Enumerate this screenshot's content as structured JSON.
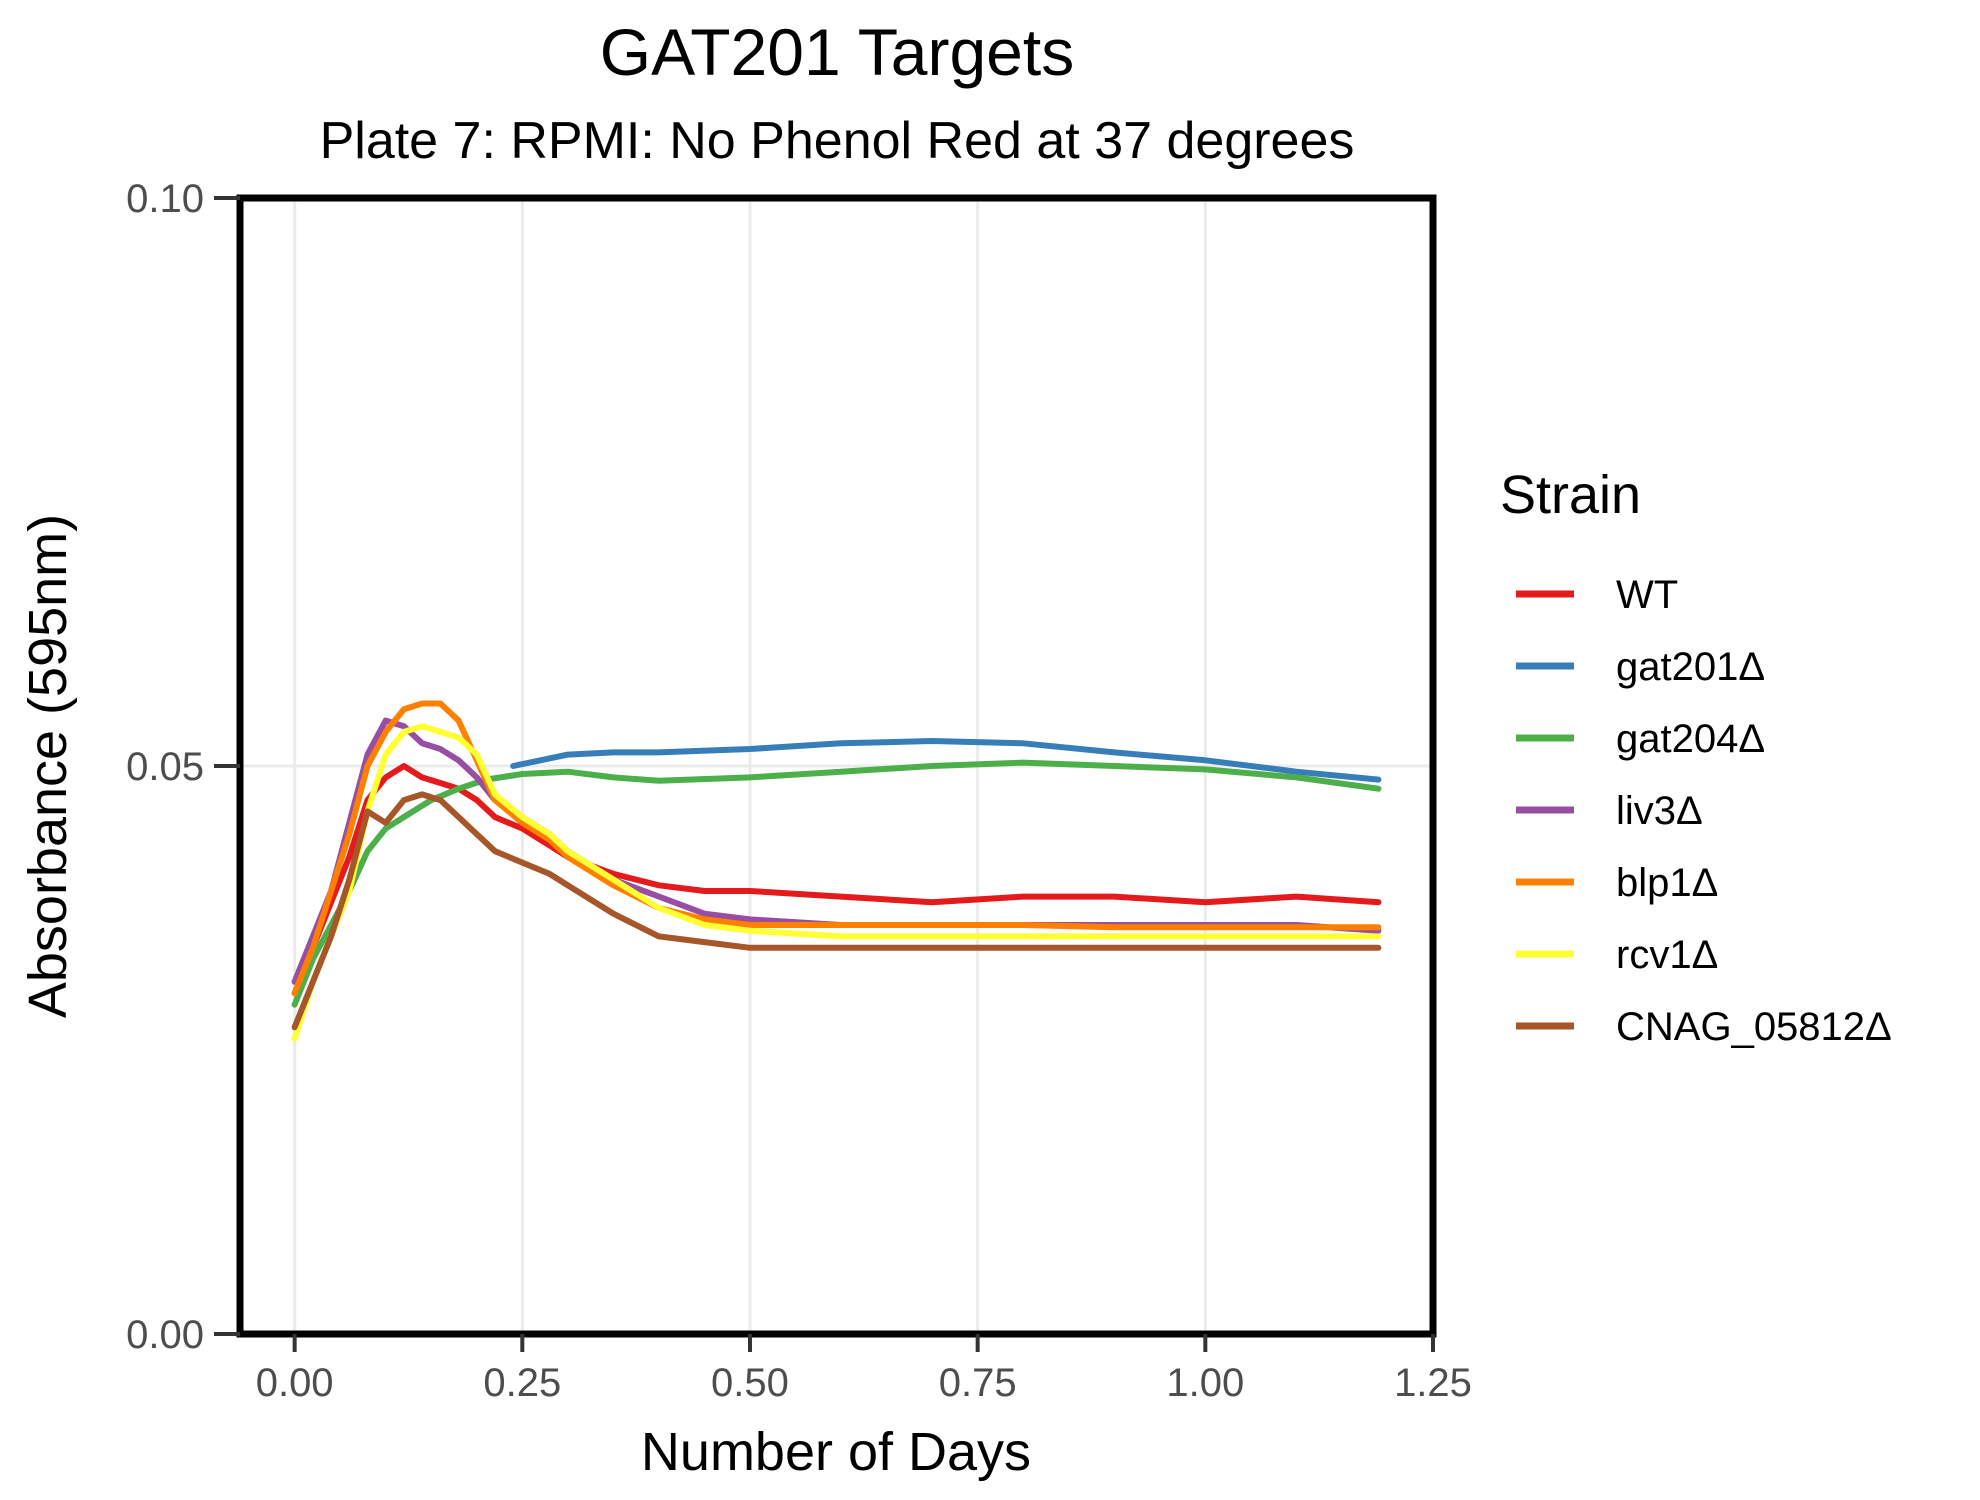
{
  "chart_data": {
    "type": "line",
    "title": "GAT201 Targets",
    "subtitle": "Plate 7: RPMI: No Phenol Red at 37 degrees",
    "xlabel": "Number of Days",
    "ylabel": "Absorbance (595nm)",
    "xlim": [
      -0.06,
      1.25
    ],
    "ylim": [
      0.0,
      0.1
    ],
    "x_ticks": [
      "0.00",
      "0.25",
      "0.50",
      "0.75",
      "1.00",
      "1.25"
    ],
    "x_tick_values": [
      0,
      0.25,
      0.5,
      0.75,
      1.0,
      1.25
    ],
    "y_ticks": [
      "0.00",
      "0.05",
      "0.10"
    ],
    "y_tick_values": [
      0,
      0.05,
      0.1
    ],
    "grid": true,
    "legend": {
      "title": "Strain",
      "position": "right"
    },
    "series": [
      {
        "name": "WT",
        "color": "#e41a1c",
        "points": [
          [
            0,
            0.03
          ],
          [
            0.02,
            0.034
          ],
          [
            0.04,
            0.038
          ],
          [
            0.06,
            0.042
          ],
          [
            0.08,
            0.047
          ],
          [
            0.1,
            0.049
          ],
          [
            0.12,
            0.05
          ],
          [
            0.14,
            0.049
          ],
          [
            0.16,
            0.0485
          ],
          [
            0.18,
            0.048
          ],
          [
            0.2,
            0.047
          ],
          [
            0.22,
            0.0455
          ],
          [
            0.25,
            0.0445
          ],
          [
            0.28,
            0.043
          ],
          [
            0.3,
            0.042
          ],
          [
            0.35,
            0.0405
          ],
          [
            0.4,
            0.0395
          ],
          [
            0.45,
            0.039
          ],
          [
            0.5,
            0.039
          ],
          [
            0.6,
            0.0385
          ],
          [
            0.7,
            0.038
          ],
          [
            0.8,
            0.0385
          ],
          [
            0.9,
            0.0385
          ],
          [
            1.0,
            0.038
          ],
          [
            1.1,
            0.0385
          ],
          [
            1.19,
            0.038
          ]
        ]
      },
      {
        "name": "gat201Δ",
        "color": "#377eb8",
        "points": [
          [
            0.24,
            0.05
          ],
          [
            0.27,
            0.0505
          ],
          [
            0.3,
            0.051
          ],
          [
            0.35,
            0.0512
          ],
          [
            0.4,
            0.0512
          ],
          [
            0.5,
            0.0515
          ],
          [
            0.6,
            0.052
          ],
          [
            0.7,
            0.0522
          ],
          [
            0.8,
            0.052
          ],
          [
            0.9,
            0.0512
          ],
          [
            1.0,
            0.0505
          ],
          [
            1.1,
            0.0495
          ],
          [
            1.19,
            0.0488
          ]
        ]
      },
      {
        "name": "gat204Δ",
        "color": "#4daf4a",
        "points": [
          [
            0,
            0.029
          ],
          [
            0.02,
            0.033
          ],
          [
            0.04,
            0.036
          ],
          [
            0.06,
            0.039
          ],
          [
            0.08,
            0.0425
          ],
          [
            0.1,
            0.0445
          ],
          [
            0.12,
            0.0455
          ],
          [
            0.15,
            0.047
          ],
          [
            0.18,
            0.048
          ],
          [
            0.21,
            0.0488
          ],
          [
            0.25,
            0.0493
          ],
          [
            0.3,
            0.0495
          ],
          [
            0.35,
            0.049
          ],
          [
            0.4,
            0.0487
          ],
          [
            0.5,
            0.049
          ],
          [
            0.6,
            0.0495
          ],
          [
            0.7,
            0.05
          ],
          [
            0.8,
            0.0503
          ],
          [
            0.9,
            0.05
          ],
          [
            1.0,
            0.0497
          ],
          [
            1.1,
            0.049
          ],
          [
            1.19,
            0.048
          ]
        ]
      },
      {
        "name": "liv3Δ",
        "color": "#984ea3",
        "points": [
          [
            0,
            0.031
          ],
          [
            0.02,
            0.035
          ],
          [
            0.04,
            0.039
          ],
          [
            0.06,
            0.045
          ],
          [
            0.08,
            0.051
          ],
          [
            0.1,
            0.054
          ],
          [
            0.12,
            0.0535
          ],
          [
            0.14,
            0.052
          ],
          [
            0.16,
            0.0515
          ],
          [
            0.18,
            0.0505
          ],
          [
            0.2,
            0.049
          ],
          [
            0.22,
            0.047
          ],
          [
            0.25,
            0.0455
          ],
          [
            0.28,
            0.044
          ],
          [
            0.3,
            0.0425
          ],
          [
            0.35,
            0.04
          ],
          [
            0.4,
            0.0385
          ],
          [
            0.45,
            0.037
          ],
          [
            0.5,
            0.0365
          ],
          [
            0.6,
            0.036
          ],
          [
            0.7,
            0.036
          ],
          [
            0.8,
            0.036
          ],
          [
            0.9,
            0.036
          ],
          [
            1.0,
            0.036
          ],
          [
            1.1,
            0.036
          ],
          [
            1.19,
            0.0355
          ]
        ]
      },
      {
        "name": "blp1Δ",
        "color": "#ff7f00",
        "points": [
          [
            0,
            0.03
          ],
          [
            0.02,
            0.034
          ],
          [
            0.04,
            0.039
          ],
          [
            0.06,
            0.044
          ],
          [
            0.08,
            0.05
          ],
          [
            0.1,
            0.053
          ],
          [
            0.12,
            0.055
          ],
          [
            0.14,
            0.0555
          ],
          [
            0.16,
            0.0555
          ],
          [
            0.18,
            0.054
          ],
          [
            0.2,
            0.0505
          ],
          [
            0.22,
            0.047
          ],
          [
            0.25,
            0.045
          ],
          [
            0.28,
            0.0435
          ],
          [
            0.3,
            0.042
          ],
          [
            0.35,
            0.0395
          ],
          [
            0.4,
            0.0375
          ],
          [
            0.45,
            0.0365
          ],
          [
            0.5,
            0.036
          ],
          [
            0.6,
            0.036
          ],
          [
            0.7,
            0.036
          ],
          [
            0.8,
            0.036
          ],
          [
            0.9,
            0.0358
          ],
          [
            1.0,
            0.0358
          ],
          [
            1.1,
            0.0358
          ],
          [
            1.19,
            0.0358
          ]
        ]
      },
      {
        "name": "rcv1Δ",
        "color": "#ffff33",
        "points": [
          [
            0,
            0.026
          ],
          [
            0.02,
            0.031
          ],
          [
            0.04,
            0.035
          ],
          [
            0.06,
            0.039
          ],
          [
            0.08,
            0.046
          ],
          [
            0.1,
            0.051
          ],
          [
            0.12,
            0.053
          ],
          [
            0.14,
            0.0535
          ],
          [
            0.16,
            0.053
          ],
          [
            0.18,
            0.0525
          ],
          [
            0.2,
            0.051
          ],
          [
            0.22,
            0.0475
          ],
          [
            0.25,
            0.0455
          ],
          [
            0.28,
            0.044
          ],
          [
            0.3,
            0.0425
          ],
          [
            0.35,
            0.04
          ],
          [
            0.4,
            0.0375
          ],
          [
            0.45,
            0.036
          ],
          [
            0.5,
            0.0355
          ],
          [
            0.6,
            0.035
          ],
          [
            0.7,
            0.035
          ],
          [
            0.8,
            0.035
          ],
          [
            0.9,
            0.035
          ],
          [
            1.0,
            0.035
          ],
          [
            1.1,
            0.035
          ],
          [
            1.19,
            0.035
          ]
        ]
      },
      {
        "name": "CNAG_05812Δ",
        "color": "#a65628",
        "points": [
          [
            0,
            0.027
          ],
          [
            0.02,
            0.031
          ],
          [
            0.04,
            0.035
          ],
          [
            0.06,
            0.04
          ],
          [
            0.08,
            0.046
          ],
          [
            0.1,
            0.045
          ],
          [
            0.12,
            0.047
          ],
          [
            0.14,
            0.0475
          ],
          [
            0.16,
            0.047
          ],
          [
            0.18,
            0.0455
          ],
          [
            0.2,
            0.044
          ],
          [
            0.22,
            0.0425
          ],
          [
            0.25,
            0.0415
          ],
          [
            0.28,
            0.0405
          ],
          [
            0.3,
            0.0395
          ],
          [
            0.35,
            0.037
          ],
          [
            0.4,
            0.035
          ],
          [
            0.45,
            0.0345
          ],
          [
            0.5,
            0.034
          ],
          [
            0.6,
            0.034
          ],
          [
            0.7,
            0.034
          ],
          [
            0.8,
            0.034
          ],
          [
            0.9,
            0.034
          ],
          [
            1.0,
            0.034
          ],
          [
            1.1,
            0.034
          ],
          [
            1.19,
            0.034
          ]
        ]
      }
    ]
  }
}
